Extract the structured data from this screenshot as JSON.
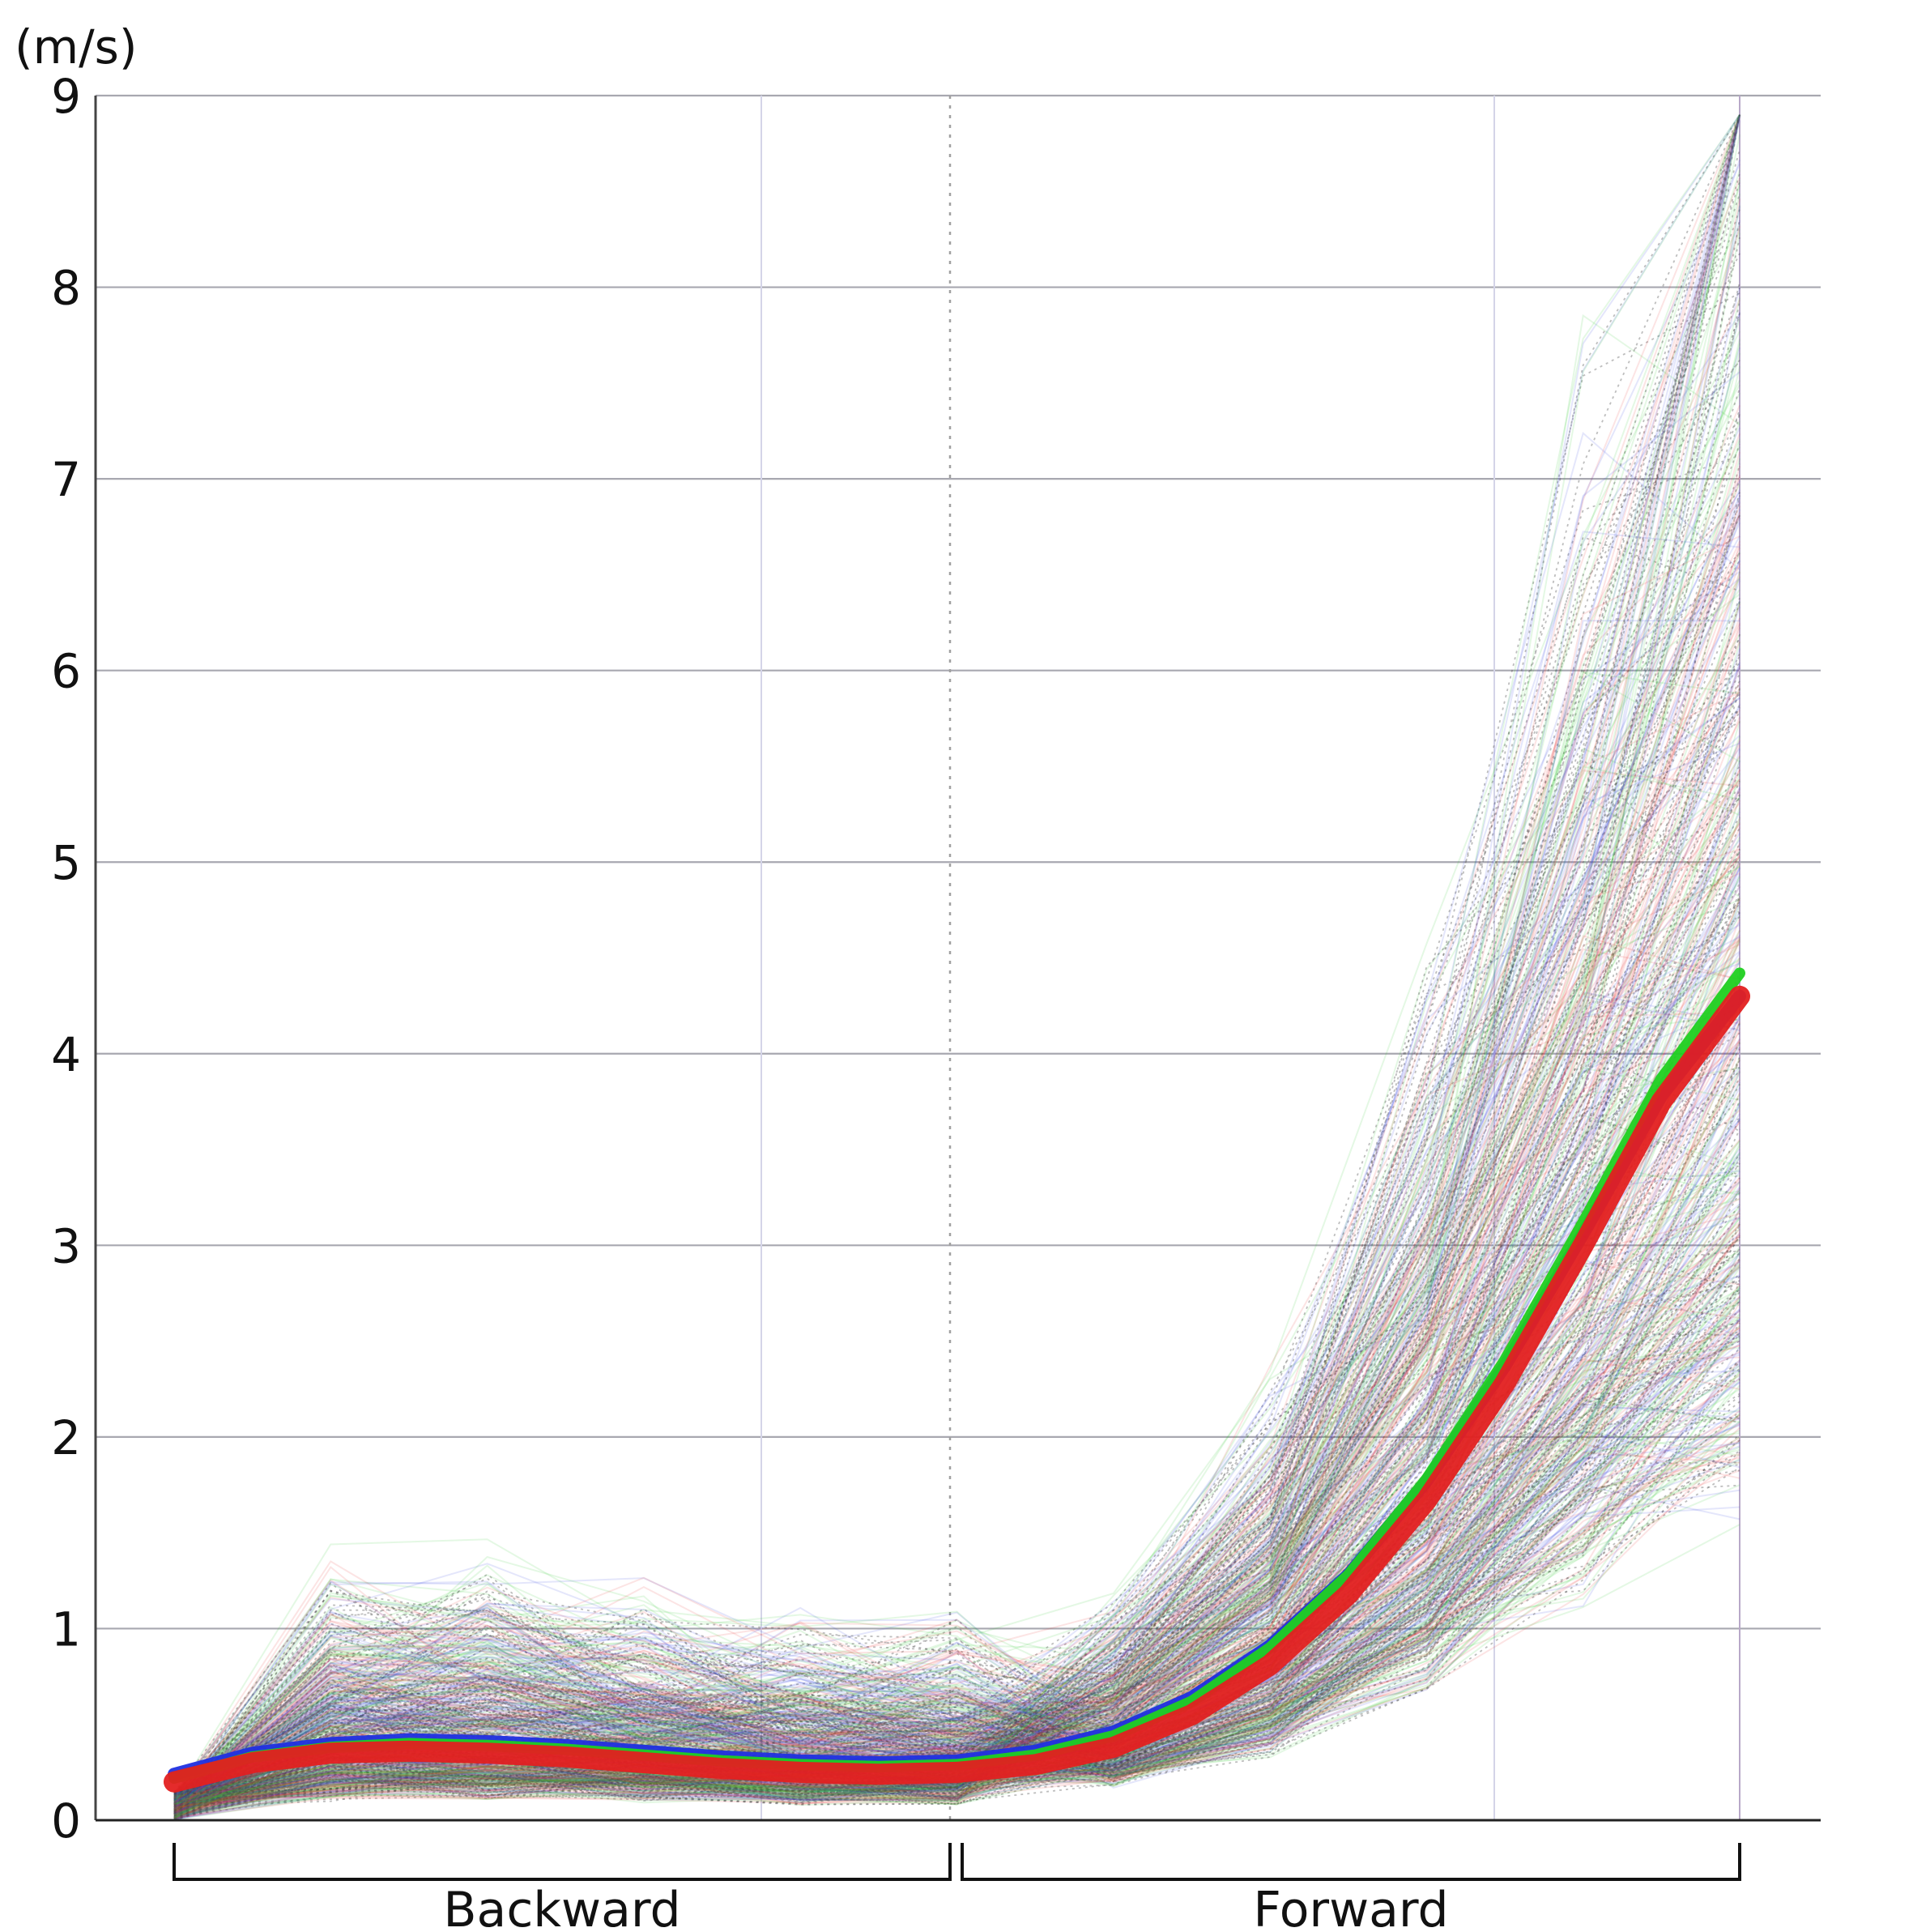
{
  "chart_data": {
    "type": "line",
    "ylabel": "(m/s)",
    "ylim": [
      0,
      9
    ],
    "yticks": [
      "0",
      "1",
      "2",
      "3",
      "4",
      "5",
      "6",
      "7",
      "8",
      "9"
    ],
    "grid": true,
    "sections": [
      "Backward",
      "Forward"
    ],
    "x_domain": [
      0,
      1
    ],
    "section_boundary": 0.5,
    "series": [
      {
        "color": "#e32020",
        "x": [
          0,
          0.05,
          0.1,
          0.15,
          0.2,
          0.25,
          0.3,
          0.35,
          0.4,
          0.45,
          0.5,
          0.55,
          0.6,
          0.65,
          0.7,
          0.75,
          0.8,
          0.85,
          0.9,
          0.95,
          1.0
        ],
        "values": [
          0.2,
          0.3,
          0.35,
          0.36,
          0.35,
          0.33,
          0.3,
          0.27,
          0.25,
          0.24,
          0.25,
          0.29,
          0.38,
          0.55,
          0.81,
          1.18,
          1.67,
          2.28,
          3.0,
          3.75,
          4.3
        ]
      },
      {
        "color": "#20d020",
        "x": [
          0,
          0.05,
          0.1,
          0.15,
          0.2,
          0.25,
          0.3,
          0.35,
          0.4,
          0.45,
          0.5,
          0.55,
          0.6,
          0.65,
          0.7,
          0.75,
          0.8,
          0.85,
          0.9,
          0.95,
          1.0
        ],
        "values": [
          0.22,
          0.33,
          0.38,
          0.4,
          0.39,
          0.37,
          0.34,
          0.31,
          0.29,
          0.28,
          0.29,
          0.34,
          0.44,
          0.62,
          0.9,
          1.28,
          1.78,
          2.4,
          3.12,
          3.87,
          4.42
        ]
      },
      {
        "color": "#2030e0",
        "x": [
          0,
          0.05,
          0.1,
          0.15,
          0.2,
          0.25,
          0.3,
          0.35,
          0.4,
          0.45,
          0.5,
          0.55,
          0.6,
          0.65,
          0.7,
          0.75,
          0.8,
          0.85,
          0.9,
          0.95,
          1.0
        ],
        "values": [
          0.24,
          0.35,
          0.4,
          0.42,
          0.41,
          0.39,
          0.36,
          0.33,
          0.31,
          0.3,
          0.31,
          0.36,
          0.46,
          0.64,
          0.91,
          1.28,
          1.77,
          2.37,
          3.06,
          3.78,
          4.3
        ]
      }
    ],
    "background_traces": {
      "colors": [
        "#e83030",
        "#30c830",
        "#3040e0",
        "#444444"
      ],
      "count": 700
    }
  }
}
